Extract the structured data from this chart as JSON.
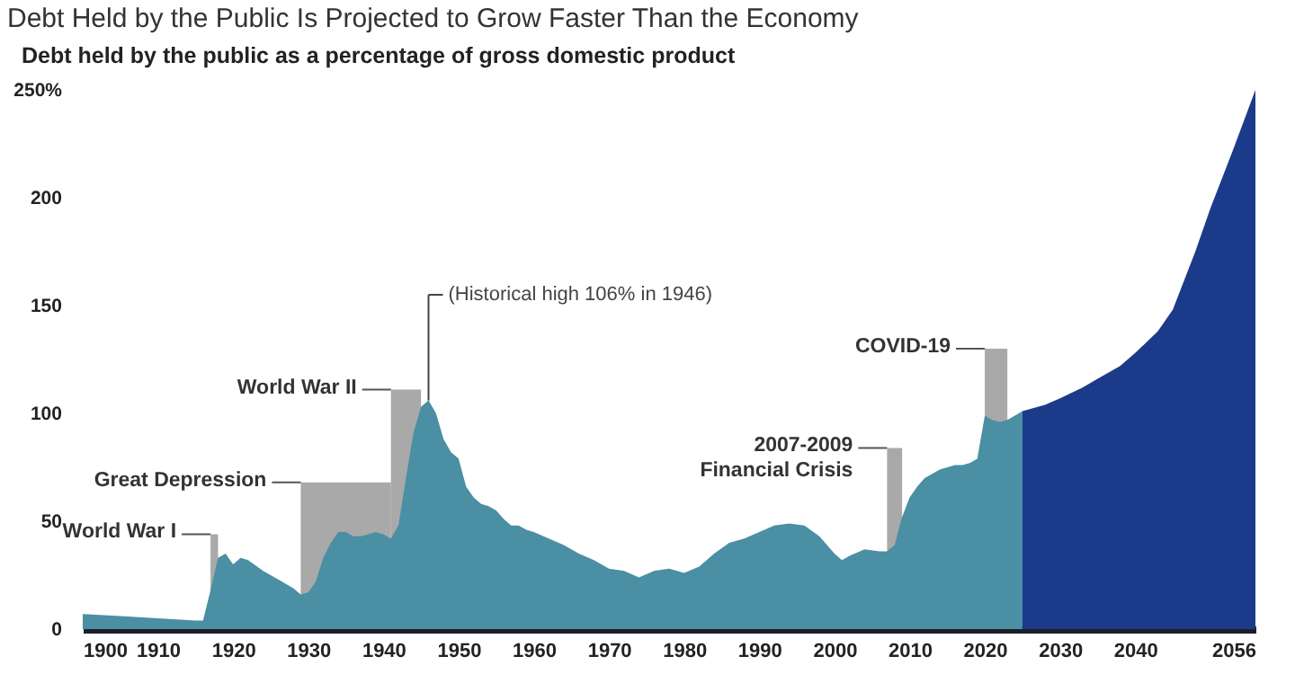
{
  "chart_data": {
    "type": "area",
    "title": "Debt Held by the Public Is Projected to Grow Faster Than the Economy",
    "subtitle": "Debt held by the public as a percentage of gross domestic product",
    "xlim": [
      1900,
      2056
    ],
    "xticks": [
      1900,
      1910,
      1920,
      1930,
      1940,
      1950,
      1960,
      1970,
      1980,
      1990,
      2000,
      2010,
      2020,
      2030,
      2040,
      2056
    ],
    "ylim": [
      0,
      250
    ],
    "yticks": [
      0,
      50,
      100,
      150,
      200,
      {
        "value": 250,
        "label": "250%"
      }
    ],
    "grid": false,
    "series": [
      {
        "color": "#4a8fa3",
        "x": [
          1900,
          1905,
          1910,
          1915,
          1916,
          1917,
          1918,
          1919,
          1920,
          1921,
          1922,
          1924,
          1926,
          1928,
          1929,
          1930,
          1931,
          1932,
          1933,
          1934,
          1935,
          1936,
          1937,
          1938,
          1939,
          1940,
          1941,
          1942,
          1943,
          1944,
          1945,
          1946,
          1947,
          1948,
          1949,
          1950,
          1951,
          1952,
          1953,
          1954,
          1955,
          1956,
          1957,
          1958,
          1959,
          1960,
          1962,
          1964,
          1966,
          1968,
          1970,
          1972,
          1974,
          1976,
          1978,
          1980,
          1982,
          1984,
          1986,
          1988,
          1990,
          1992,
          1994,
          1996,
          1998,
          2000,
          2001,
          2002,
          2004,
          2006,
          2007,
          2008,
          2009,
          2010,
          2011,
          2012,
          2014,
          2016,
          2017,
          2018,
          2019,
          2020,
          2021,
          2022,
          2023,
          2024,
          2025
        ],
        "values": [
          7,
          6,
          5,
          4,
          4,
          18,
          33,
          35,
          30,
          33,
          32,
          27,
          23,
          19,
          16,
          17,
          22,
          33,
          40,
          45,
          45,
          43,
          43,
          44,
          45,
          44,
          42,
          48,
          70,
          91,
          103,
          106,
          100,
          88,
          82,
          79,
          66,
          61,
          58,
          57,
          55,
          51,
          48,
          48,
          46,
          45,
          42,
          39,
          35,
          32,
          28,
          27,
          24,
          27,
          28,
          26,
          29,
          35,
          40,
          42,
          45,
          48,
          49,
          48,
          43,
          35,
          32,
          34,
          37,
          36,
          36,
          39,
          52,
          61,
          66,
          70,
          74,
          76,
          76,
          77,
          79,
          99,
          97,
          96,
          97,
          99,
          101
        ]
      },
      {
        "color": "#1b3a8a",
        "x": [
          2025,
          2028,
          2030,
          2033,
          2035,
          2038,
          2040,
          2043,
          2045,
          2048,
          2050,
          2053,
          2056
        ],
        "values": [
          101,
          104,
          107,
          112,
          116,
          122,
          128,
          138,
          148,
          175,
          195,
          222,
          250
        ]
      }
    ],
    "bands": [
      {
        "axis": "x",
        "from": 1917,
        "to": 1918,
        "label": "World War I",
        "color": "#a9a9a9"
      },
      {
        "axis": "x",
        "from": 1929,
        "to": 1941,
        "label": "Great Depression",
        "color": "#a9a9a9"
      },
      {
        "axis": "x",
        "from": 1941,
        "to": 1945,
        "label": "World War II",
        "color": "#a9a9a9"
      },
      {
        "axis": "x",
        "from": 2007,
        "to": 2009,
        "label": "2007-2009\nFinancial Crisis",
        "color": "#a9a9a9"
      },
      {
        "axis": "x",
        "from": 2020,
        "to": 2023,
        "label": "COVID-19",
        "color": "#a9a9a9"
      }
    ],
    "annotations": [
      {
        "text": "(Historical high 106% in 1946)",
        "x": 1946,
        "y": 106
      }
    ]
  }
}
